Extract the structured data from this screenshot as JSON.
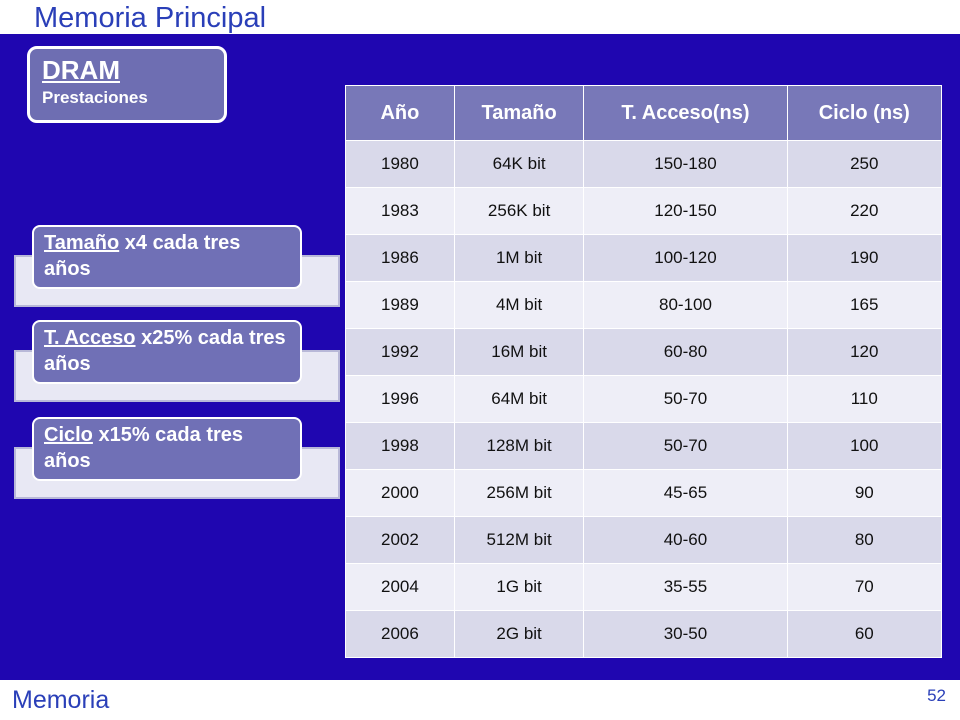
{
  "slide_title": "Memoria Principal",
  "dram": {
    "title": "DRAM",
    "subtitle": "Prestaciones"
  },
  "callouts": [
    {
      "underlined": "Tamaño",
      "rest": " x4 cada tres años"
    },
    {
      "underlined": "T. Acceso",
      "rest": " x25% cada tres años"
    },
    {
      "underlined": "Ciclo",
      "rest": " x15% cada tres años"
    }
  ],
  "table": {
    "headers": [
      "Año",
      "Tamaño",
      "T. Acceso(ns)",
      "Ciclo (ns)"
    ],
    "rows": [
      [
        "1980",
        "64K bit",
        "150-180",
        "250"
      ],
      [
        "1983",
        "256K bit",
        "120-150",
        "220"
      ],
      [
        "1986",
        "1M bit",
        "100-120",
        "190"
      ],
      [
        "1989",
        "4M bit",
        "80-100",
        "165"
      ],
      [
        "1992",
        "16M bit",
        "60-80",
        "120"
      ],
      [
        "1996",
        "64M bit",
        "50-70",
        "110"
      ],
      [
        "1998",
        "128M bit",
        "50-70",
        "100"
      ],
      [
        "2000",
        "256M bit",
        "45-65",
        "90"
      ],
      [
        "2002",
        "512M bit",
        "40-60",
        "80"
      ],
      [
        "2004",
        "1G bit",
        "35-55",
        "70"
      ],
      [
        "2006",
        "2G bit",
        "30-50",
        "60"
      ]
    ]
  },
  "footer": {
    "label": "Memoria",
    "page_number": "52"
  },
  "colors": {
    "background": "#1f06b0",
    "accent_text": "#2a3fb8",
    "box": "#7070b6"
  }
}
